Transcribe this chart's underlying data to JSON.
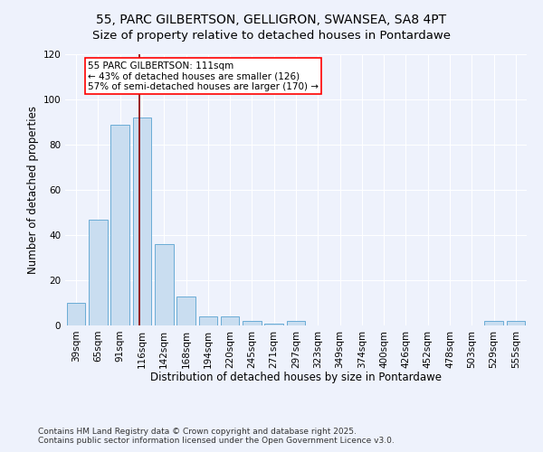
{
  "title1": "55, PARC GILBERTSON, GELLIGRON, SWANSEA, SA8 4PT",
  "title2": "Size of property relative to detached houses in Pontardawe",
  "xlabel": "Distribution of detached houses by size in Pontardawe",
  "ylabel": "Number of detached properties",
  "categories": [
    "39sqm",
    "65sqm",
    "91sqm",
    "116sqm",
    "142sqm",
    "168sqm",
    "194sqm",
    "220sqm",
    "245sqm",
    "271sqm",
    "297sqm",
    "323sqm",
    "349sqm",
    "374sqm",
    "400sqm",
    "426sqm",
    "452sqm",
    "478sqm",
    "503sqm",
    "529sqm",
    "555sqm"
  ],
  "values": [
    10,
    47,
    89,
    92,
    36,
    13,
    4,
    4,
    2,
    1,
    2,
    0,
    0,
    0,
    0,
    0,
    0,
    0,
    0,
    2,
    2
  ],
  "bar_color": "#c9ddf0",
  "bar_edge_color": "#6aacd6",
  "ref_line_x": 2.87,
  "ref_line_label": "55 PARC GILBERTSON: 111sqm",
  "annotation_line1": "← 43% of detached houses are smaller (126)",
  "annotation_line2": "57% of semi-detached houses are larger (170) →",
  "box_facecolor": "white",
  "box_edgecolor": "red",
  "ref_line_color": "#8b0000",
  "ylim": [
    0,
    120
  ],
  "yticks": [
    0,
    20,
    40,
    60,
    80,
    100,
    120
  ],
  "footer1": "Contains HM Land Registry data © Crown copyright and database right 2025.",
  "footer2": "Contains public sector information licensed under the Open Government Licence v3.0.",
  "bg_color": "#eef2fc",
  "grid_color": "#ffffff",
  "title_fontsize": 10,
  "subtitle_fontsize": 9.5,
  "axis_label_fontsize": 8.5,
  "tick_fontsize": 7.5,
  "annotation_fontsize": 7.5,
  "footer_fontsize": 6.5
}
